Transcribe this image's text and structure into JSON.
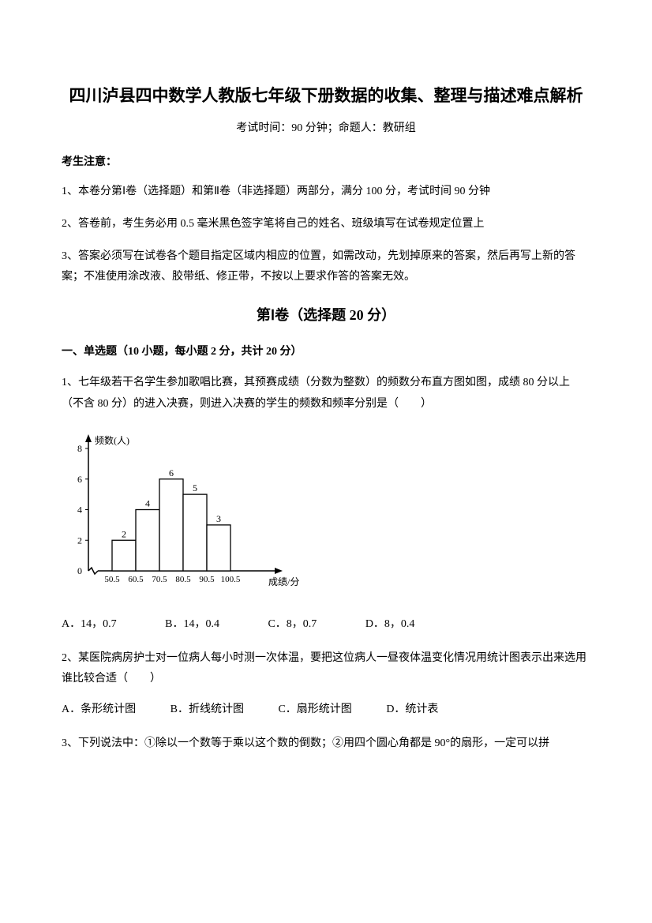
{
  "title": "四川泸县四中数学人教版七年级下册数据的收集、整理与描述难点解析",
  "subtitle": "考试时间：90 分钟；命题人：教研组",
  "notice_heading": "考生注意：",
  "notice_items": [
    "1、本卷分第Ⅰ卷（选择题）和第Ⅱ卷（非选择题）两部分，满分 100 分，考试时间 90 分钟",
    "2、答卷前，考生务必用 0.5 毫米黑色签字笔将自己的姓名、班级填写在试卷规定位置上",
    "3、答案必须写在试卷各个题目指定区域内相应的位置，如需改动，先划掉原来的答案，然后再写上新的答案；不准使用涂改液、胶带纸、修正带，不按以上要求作答的答案无效。"
  ],
  "section_heading": "第Ⅰ卷（选择题  20 分）",
  "subsection_heading": "一、单选题（10 小题，每小题 2 分，共计 20 分）",
  "q1_text": "1、七年级若干名学生参加歌唱比赛，其预赛成绩（分数为整数）的频数分布直方图如图，成绩 80 分以上（不含 80 分）的进入决赛，则进入决赛的学生的频数和频率分别是（　　）",
  "q1_options": {
    "a": "A．14，0.7",
    "b": "B．14，0.4",
    "c": "C．8，0.7",
    "d": "D．8，0.4"
  },
  "q2_text": "2、某医院病房护士对一位病人每小时测一次体温，要把这位病人一昼夜体温变化情况用统计图表示出来选用谁比较合适（　　）",
  "q2_options": {
    "a": "A．条形统计图",
    "b": "B．折线统计图",
    "c": "C．扇形统计图",
    "d": "D．统计表"
  },
  "q3_text": "3、下列说法中：①除以一个数等于乘以这个数的倒数；②用四个圆心角都是 90°的扇形，一定可以拼",
  "chart": {
    "ylabel": "频数(人)",
    "xlabel": "成绩/分",
    "y_ticks": [
      0,
      2,
      4,
      6,
      8
    ],
    "x_ticks": [
      "50.5",
      "60.5",
      "70.5",
      "80.5",
      "90.5",
      "100.5"
    ],
    "bars": [
      {
        "label": "2",
        "value": 2
      },
      {
        "label": "4",
        "value": 4
      },
      {
        "label": "6",
        "value": 6
      },
      {
        "label": "5",
        "value": 5
      },
      {
        "label": "3",
        "value": 3
      }
    ],
    "bar_color": "#ffffff",
    "bar_stroke": "#000000",
    "axis_color": "#000000",
    "text_color": "#000000",
    "font_size": 12
  }
}
